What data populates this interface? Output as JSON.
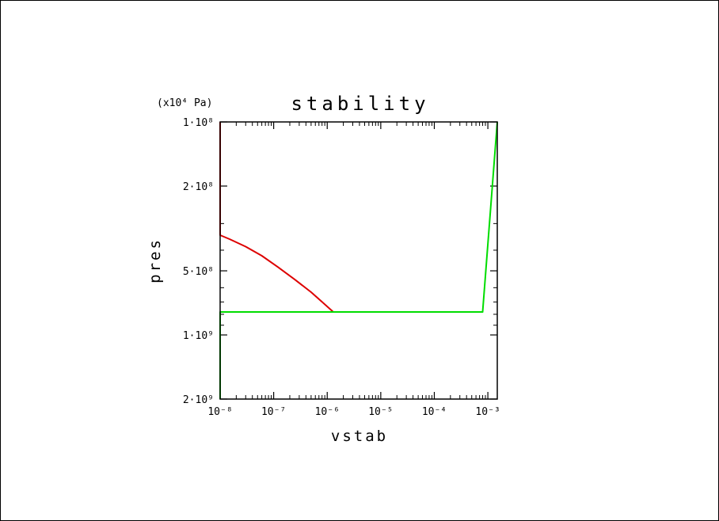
{
  "chart_data": {
    "type": "line",
    "title": "stability",
    "xlabel": "vstab",
    "ylabel": "pres",
    "y_unit_label": "(x10⁴ Pa)",
    "x_scale": "log",
    "y_scale": "log",
    "y_inverted": true,
    "xlim": [
      1e-08,
      0.0015
    ],
    "ylim": [
      100000000.0,
      2000000000.0
    ],
    "x_ticks": [
      {
        "value": 1e-08,
        "label": "10⁻⁸"
      },
      {
        "value": 1e-07,
        "label": "10⁻⁷"
      },
      {
        "value": 1e-06,
        "label": "10⁻⁶"
      },
      {
        "value": 1e-05,
        "label": "10⁻⁵"
      },
      {
        "value": 0.0001,
        "label": "10⁻⁴"
      },
      {
        "value": 0.001,
        "label": "10⁻³"
      }
    ],
    "y_ticks": [
      {
        "value": 100000000.0,
        "label": "1·10⁸"
      },
      {
        "value": 200000000.0,
        "label": "2·10⁸"
      },
      {
        "value": 500000000.0,
        "label": "5·10⁸"
      },
      {
        "value": 1000000000.0,
        "label": "1·10⁹"
      },
      {
        "value": 2000000000.0,
        "label": "2·10⁹"
      }
    ],
    "grid": false,
    "series": [
      {
        "color": "#dd0000",
        "points": [
          [
            1e-08,
            100000000.0
          ],
          [
            1e-08,
            340000000.0
          ],
          [
            1.5e-08,
            355000000.0
          ],
          [
            3e-08,
            385000000.0
          ],
          [
            6e-08,
            425000000.0
          ],
          [
            1.2e-07,
            480000000.0
          ],
          [
            2.5e-07,
            550000000.0
          ],
          [
            5e-07,
            630000000.0
          ],
          [
            8e-07,
            700000000.0
          ],
          [
            1.3e-06,
            780000000.0
          ]
        ]
      },
      {
        "color": "#00dd00",
        "points": [
          [
            1e-08,
            2000000000.0
          ],
          [
            1e-08,
            780000000.0
          ],
          [
            0.0008,
            780000000.0
          ],
          [
            0.0015,
            100000000.0
          ]
        ]
      }
    ]
  }
}
